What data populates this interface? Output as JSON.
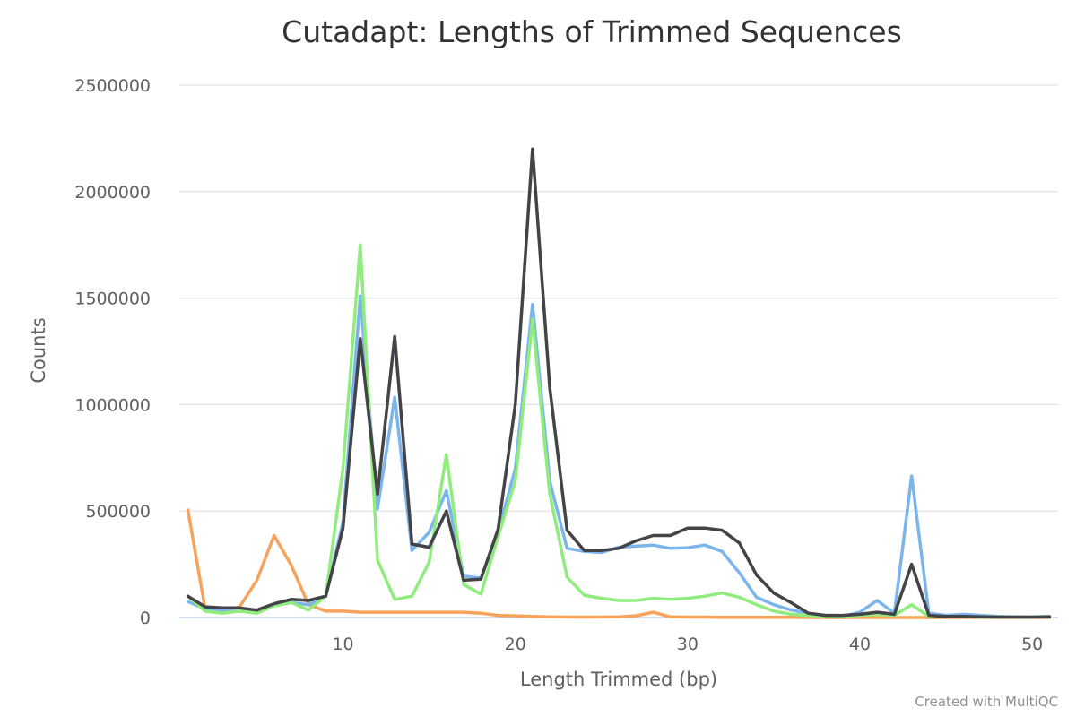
{
  "chart_data": {
    "type": "line",
    "title": "Cutadapt: Lengths of Trimmed Sequences",
    "xlabel": "Length Trimmed (bp)",
    "ylabel": "Counts",
    "xlim": [
      0.5,
      51.5
    ],
    "ylim": [
      0,
      2500000
    ],
    "x_ticks": [
      10,
      20,
      30,
      40,
      50
    ],
    "y_ticks": [
      0,
      500000,
      1000000,
      1500000,
      2000000,
      2500000
    ],
    "grid": true,
    "legend": "none",
    "x": [
      1,
      2,
      3,
      4,
      5,
      6,
      7,
      8,
      9,
      10,
      11,
      12,
      13,
      14,
      15,
      16,
      17,
      18,
      19,
      20,
      21,
      22,
      23,
      24,
      25,
      26,
      27,
      28,
      29,
      30,
      31,
      32,
      33,
      34,
      35,
      36,
      37,
      38,
      39,
      40,
      41,
      42,
      43,
      44,
      45,
      46,
      47,
      48,
      49,
      50,
      51
    ],
    "series": [
      {
        "color": "#f7a35c",
        "values": [
          505000,
          40000,
          30000,
          50000,
          175000,
          385000,
          245000,
          60000,
          30000,
          30000,
          25000,
          25000,
          25000,
          25000,
          25000,
          25000,
          25000,
          20000,
          10000,
          8000,
          5000,
          3000,
          2000,
          2000,
          2000,
          3000,
          8000,
          25000,
          3000,
          2000,
          2000,
          1000,
          1000,
          1000,
          1000,
          1000,
          0,
          0,
          0,
          0,
          0,
          0,
          0,
          0,
          0,
          0,
          0,
          0,
          0,
          0,
          0
        ]
      },
      {
        "color": "#7cb5ec",
        "values": [
          75000,
          40000,
          30000,
          30000,
          25000,
          60000,
          70000,
          60000,
          100000,
          450000,
          1510000,
          510000,
          1035000,
          315000,
          400000,
          595000,
          195000,
          185000,
          400000,
          700000,
          1470000,
          640000,
          325000,
          310000,
          305000,
          330000,
          335000,
          340000,
          325000,
          328000,
          340000,
          310000,
          210000,
          95000,
          60000,
          35000,
          20000,
          10000,
          5000,
          25000,
          80000,
          20000,
          665000,
          20000,
          10000,
          15000,
          10000,
          5000,
          3000,
          2000,
          5000
        ]
      },
      {
        "color": "#90ed7d",
        "values": [
          100000,
          30000,
          20000,
          30000,
          20000,
          55000,
          70000,
          35000,
          100000,
          700000,
          1750000,
          270000,
          85000,
          100000,
          260000,
          765000,
          155000,
          110000,
          380000,
          640000,
          1400000,
          580000,
          190000,
          105000,
          90000,
          80000,
          80000,
          90000,
          85000,
          90000,
          100000,
          115000,
          95000,
          60000,
          30000,
          15000,
          10000,
          5000,
          5000,
          10000,
          15000,
          10000,
          60000,
          5000,
          3000,
          3000,
          2000,
          2000,
          2000,
          2000,
          5000
        ]
      },
      {
        "color": "#434348",
        "values": [
          100000,
          50000,
          45000,
          45000,
          35000,
          65000,
          85000,
          80000,
          100000,
          420000,
          1310000,
          580000,
          1320000,
          345000,
          330000,
          500000,
          175000,
          180000,
          415000,
          1000000,
          2200000,
          1080000,
          410000,
          315000,
          315000,
          325000,
          360000,
          385000,
          385000,
          420000,
          420000,
          410000,
          350000,
          200000,
          115000,
          70000,
          20000,
          10000,
          10000,
          15000,
          25000,
          15000,
          250000,
          10000,
          5000,
          5000,
          3000,
          2000,
          2000,
          2000,
          3000
        ]
      }
    ]
  },
  "credit": "Created with MultiQC"
}
